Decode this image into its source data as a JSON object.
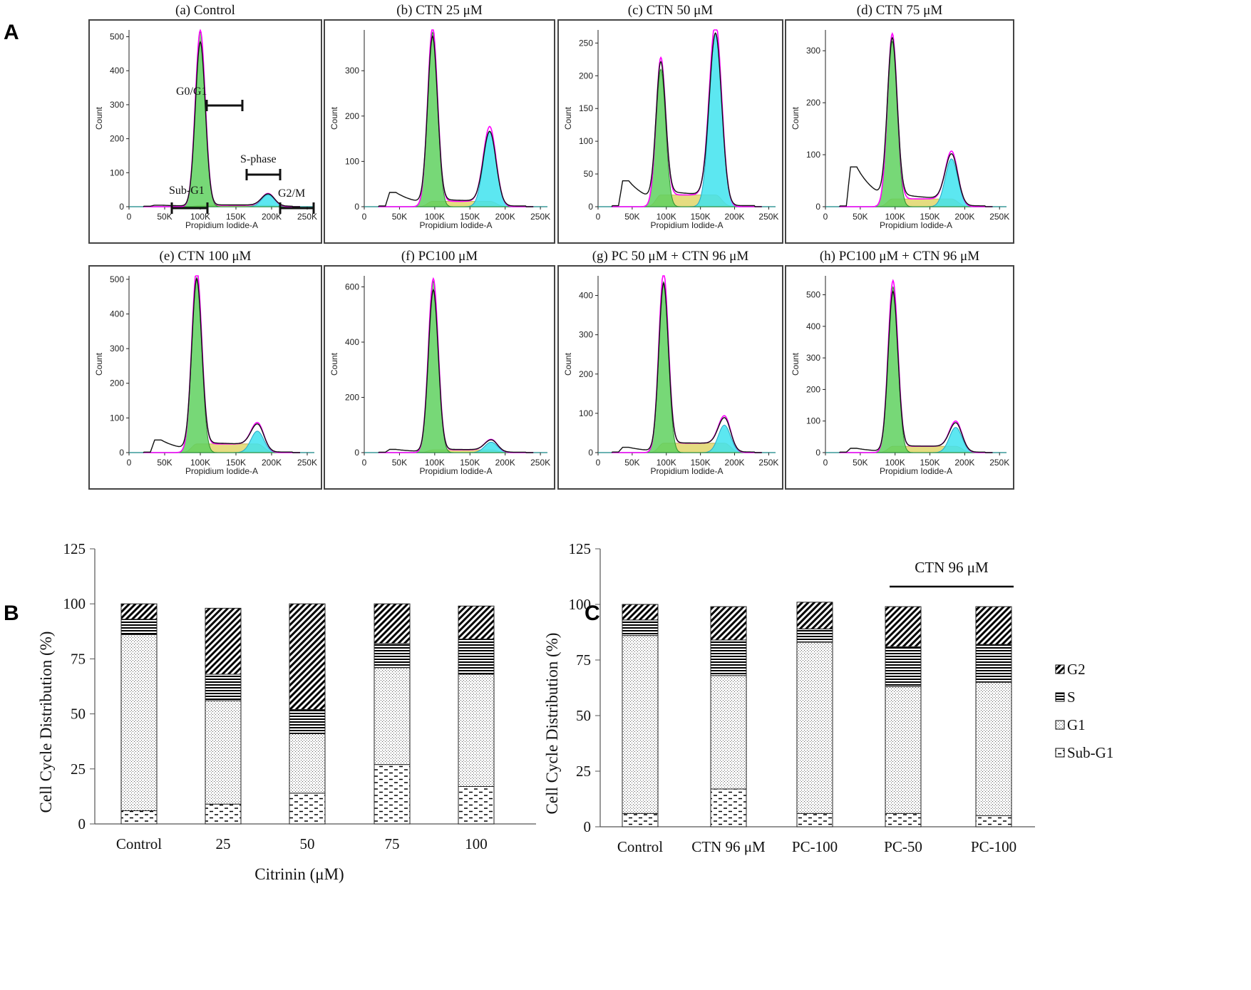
{
  "panel_letters": {
    "a": "A",
    "b": "B",
    "c": "C"
  },
  "colors": {
    "g1": "#5fd15f",
    "s": "#e0d66a",
    "g2": "#3fe3ef",
    "fit": "#ff00ff",
    "data": "#111111",
    "frame": "#444444"
  },
  "gate_labels": {
    "g0g1": "G0/G1",
    "sphase": "S-phase",
    "subg1": "Sub-G1",
    "g2m": "G2/M"
  },
  "chart_data": [
    {
      "type": "histogram",
      "id": "a",
      "title": "(a) Control",
      "xlabel": "Propidium Iodide-A",
      "ylabel": "Count",
      "xlim": [
        0,
        260000
      ],
      "ylim": [
        0,
        520
      ],
      "xticks": [
        "0",
        "50K",
        "100K",
        "150K",
        "200K",
        "250K"
      ],
      "yticks": [
        0,
        100,
        200,
        300,
        400,
        500
      ],
      "g1_peak": {
        "x": 100000,
        "height": 515
      },
      "g2_peak": {
        "x": 195000,
        "height": 35
      },
      "s_height": 4,
      "debris_height": 3
    },
    {
      "type": "histogram",
      "id": "b",
      "title": "(b) CTN 25 μM",
      "xlabel": "Propidium Iodide-A",
      "ylabel": "Count",
      "xlim": [
        0,
        260000
      ],
      "ylim": [
        0,
        390
      ],
      "xticks": [
        "0",
        "50K",
        "100K",
        "150K",
        "200K",
        "250K"
      ],
      "yticks": [
        0,
        100,
        200,
        300
      ],
      "g1_peak": {
        "x": 97000,
        "height": 385
      },
      "g2_peak": {
        "x": 178000,
        "height": 165
      },
      "s_height": 12,
      "debris_height": 30
    },
    {
      "type": "histogram",
      "id": "c",
      "title": "(c) CTN 50 μM",
      "xlabel": "Propidium Iodide-A",
      "ylabel": "Count",
      "xlim": [
        0,
        260000
      ],
      "ylim": [
        0,
        270
      ],
      "xticks": [
        "0",
        "50K",
        "100K",
        "150K",
        "200K",
        "250K"
      ],
      "yticks": [
        0,
        50,
        100,
        150,
        200,
        250
      ],
      "g1_peak": {
        "x": 92000,
        "height": 210
      },
      "g2_peak": {
        "x": 172000,
        "height": 265
      },
      "s_height": 18,
      "debris_height": 38
    },
    {
      "type": "histogram",
      "id": "d",
      "title": "(d) CTN 75 μM",
      "xlabel": "Propidium Iodide-A",
      "ylabel": "Count",
      "xlim": [
        0,
        260000
      ],
      "ylim": [
        0,
        340
      ],
      "xticks": [
        "0",
        "50K",
        "100K",
        "150K",
        "200K",
        "250K"
      ],
      "yticks": [
        0,
        100,
        200,
        300
      ],
      "g1_peak": {
        "x": 96000,
        "height": 318
      },
      "g2_peak": {
        "x": 181000,
        "height": 92
      },
      "s_height": 15,
      "debris_height": 75
    },
    {
      "type": "histogram",
      "id": "e",
      "title": "(e) CTN 100 μM",
      "xlabel": "Propidium Iodide-A",
      "ylabel": "Count",
      "xlim": [
        0,
        260000
      ],
      "ylim": [
        0,
        510
      ],
      "xticks": [
        "0",
        "50K",
        "100K",
        "150K",
        "200K",
        "250K"
      ],
      "yticks": [
        0,
        100,
        200,
        300,
        400,
        500
      ],
      "g1_peak": {
        "x": 95000,
        "height": 505
      },
      "g2_peak": {
        "x": 180000,
        "height": 62
      },
      "s_height": 25,
      "debris_height": 35
    },
    {
      "type": "histogram",
      "id": "f",
      "title": "(f) PC100 μM",
      "xlabel": "Propidium Iodide-A",
      "ylabel": "Count",
      "xlim": [
        0,
        260000
      ],
      "ylim": [
        0,
        640
      ],
      "xticks": [
        "0",
        "50K",
        "100K",
        "150K",
        "200K",
        "250K"
      ],
      "yticks": [
        0,
        200,
        400,
        600
      ],
      "g1_peak": {
        "x": 98000,
        "height": 620
      },
      "g2_peak": {
        "x": 180000,
        "height": 38
      },
      "s_height": 10,
      "debris_height": 10
    },
    {
      "type": "histogram",
      "id": "g",
      "title": "(g) PC 50 μM + CTN 96 μM",
      "xlabel": "Propidium Iodide-A",
      "ylabel": "Count",
      "xlim": [
        0,
        260000
      ],
      "ylim": [
        0,
        450
      ],
      "xticks": [
        "0",
        "50K",
        "100K",
        "150K",
        "200K",
        "250K"
      ],
      "yticks": [
        0,
        100,
        200,
        300,
        400
      ],
      "g1_peak": {
        "x": 96000,
        "height": 435
      },
      "g2_peak": {
        "x": 185000,
        "height": 70
      },
      "s_height": 24,
      "debris_height": 12
    },
    {
      "type": "histogram",
      "id": "h",
      "title": "(h) PC100 μM + CTN 96 μM",
      "xlabel": "Propidium Iodide-A",
      "ylabel": "Count",
      "xlim": [
        0,
        260000
      ],
      "ylim": [
        0,
        560
      ],
      "xticks": [
        "0",
        "50K",
        "100K",
        "150K",
        "200K",
        "250K"
      ],
      "yticks": [
        0,
        100,
        200,
        300,
        400,
        500
      ],
      "g1_peak": {
        "x": 97000,
        "height": 525
      },
      "g2_peak": {
        "x": 187000,
        "height": 80
      },
      "s_height": 20,
      "debris_height": 12
    },
    {
      "type": "stacked_bar",
      "id": "B",
      "categories": [
        "Control",
        "25",
        "50",
        "75",
        "100"
      ],
      "xlabel": "Citrinin (μM)",
      "ylabel": "Cell Cycle Distribution (%)",
      "ylim": [
        0,
        125
      ],
      "yticks": [
        0,
        25,
        50,
        75,
        100,
        125
      ],
      "series": [
        {
          "name": "Sub-G1",
          "values": [
            6,
            9,
            14,
            27,
            17
          ]
        },
        {
          "name": "G1",
          "values": [
            80,
            47,
            27,
            44,
            51
          ]
        },
        {
          "name": "S",
          "values": [
            7,
            12,
            11,
            11,
            16
          ]
        },
        {
          "name": "G2",
          "values": [
            7,
            30,
            48,
            18,
            15
          ]
        }
      ]
    },
    {
      "type": "stacked_bar",
      "id": "C",
      "categories": [
        "Control",
        "CTN 96 μM",
        "PC-100",
        "PC-50",
        "PC-100"
      ],
      "xlabel": "",
      "ylabel": "Cell Cycle Distribution (%)",
      "ylim": [
        0,
        125
      ],
      "yticks": [
        0,
        25,
        50,
        75,
        100,
        125
      ],
      "annotation": "CTN 96 μM",
      "series": [
        {
          "name": "Sub-G1",
          "values": [
            6,
            17,
            6,
            6,
            5
          ]
        },
        {
          "name": "G1",
          "values": [
            80,
            51,
            77,
            57,
            60
          ]
        },
        {
          "name": "S",
          "values": [
            7,
            16,
            6,
            18,
            17
          ]
        },
        {
          "name": "G2",
          "values": [
            7,
            15,
            12,
            18,
            17
          ]
        }
      ],
      "legend": [
        "G2",
        "S",
        "G1",
        "Sub-G1"
      ]
    }
  ]
}
